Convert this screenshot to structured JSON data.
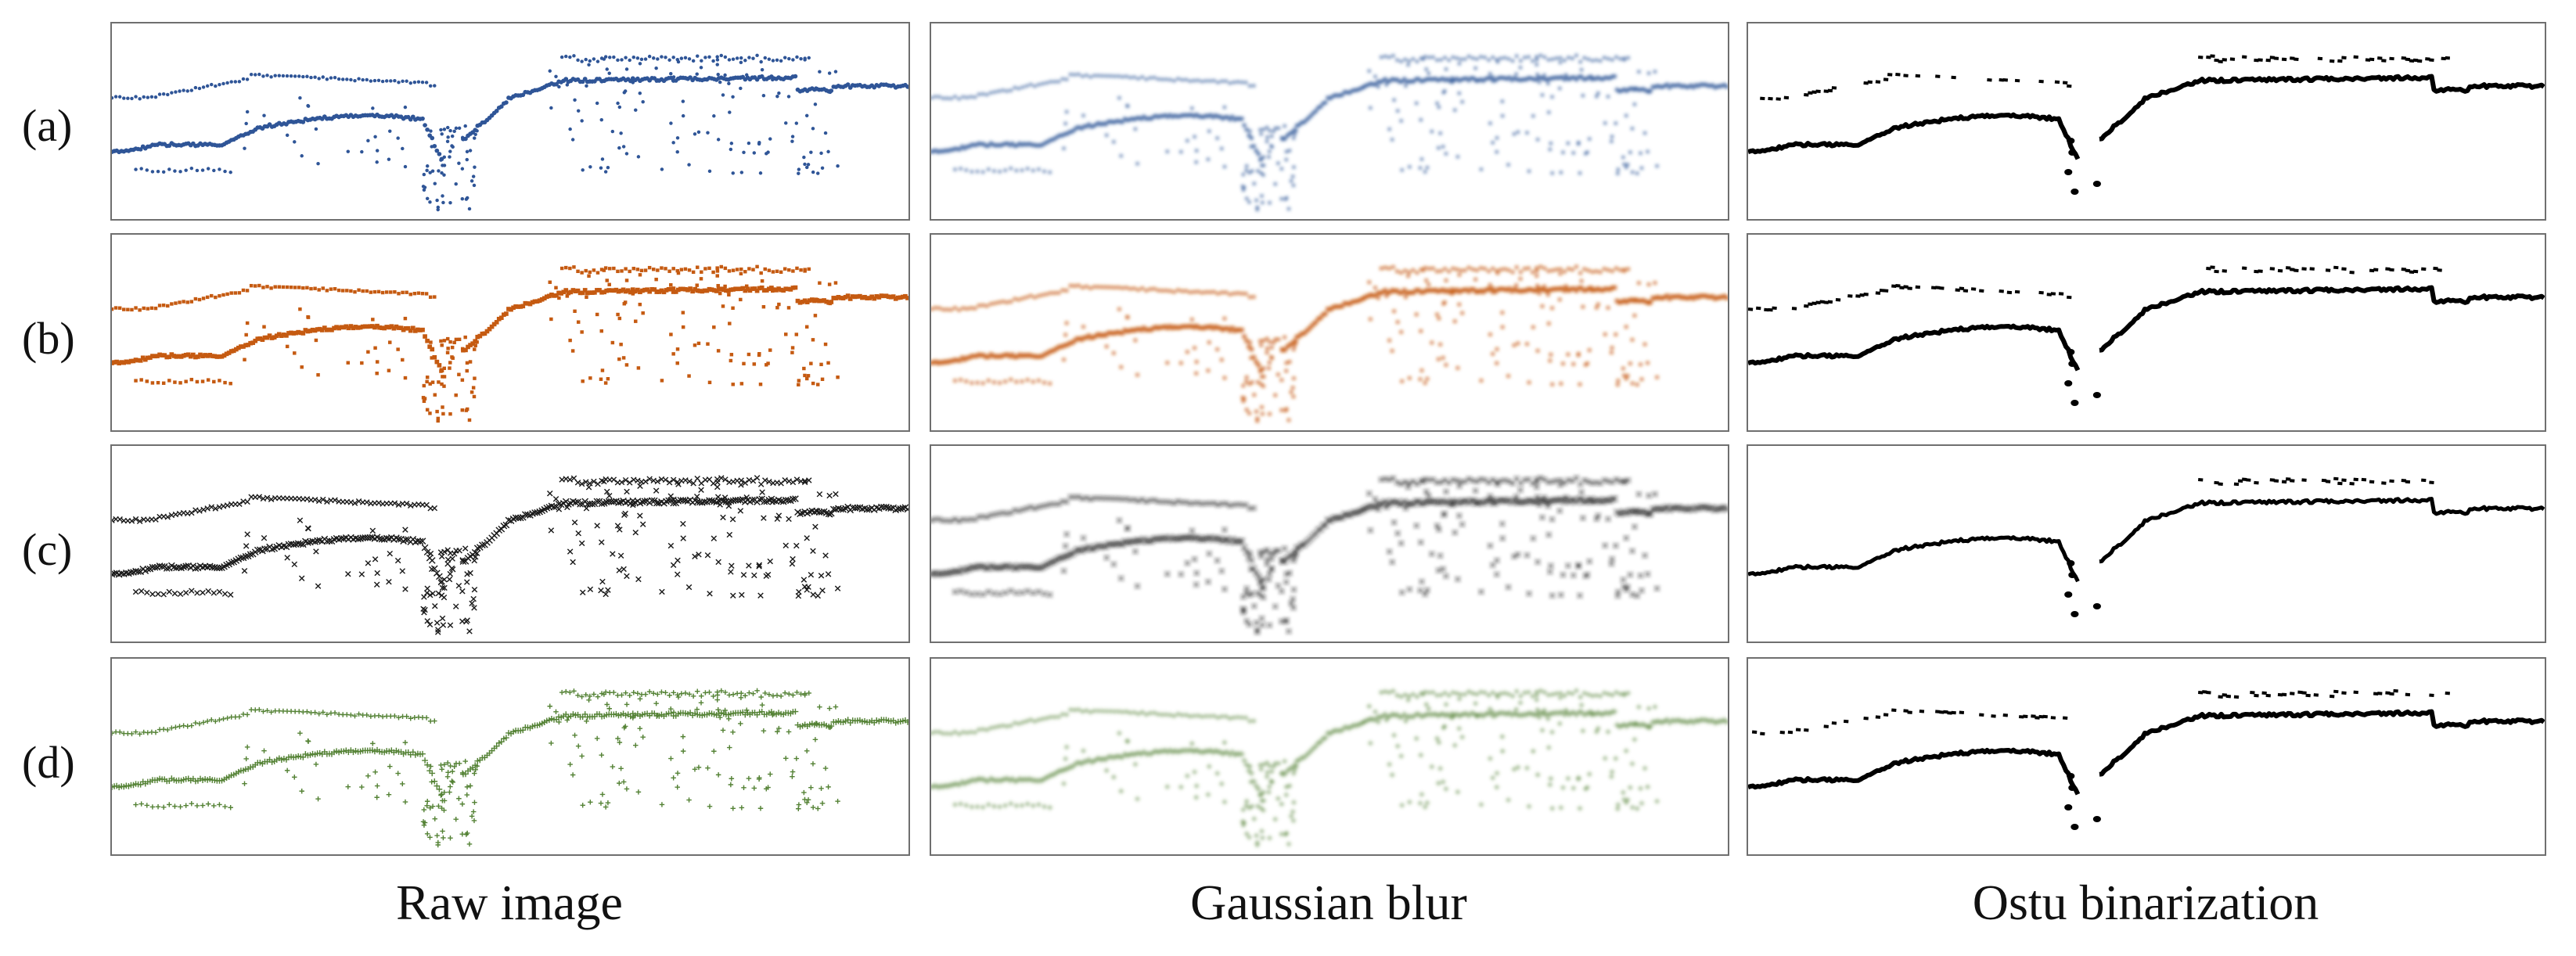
{
  "figure": {
    "rows": [
      {
        "label": "(a)",
        "marker": "dot",
        "color": "#2F5597"
      },
      {
        "label": "(b)",
        "marker": "square",
        "color": "#C55A11"
      },
      {
        "label": "(c)",
        "marker": "cross",
        "color": "#1A1A1A"
      },
      {
        "label": "(d)",
        "marker": "plus",
        "color": "#548235"
      }
    ],
    "columns": [
      {
        "label": "Raw image",
        "style": "raw"
      },
      {
        "label": "Gaussian blur",
        "style": "blur"
      },
      {
        "label": "Ostu binarization",
        "style": "binary"
      }
    ]
  }
}
